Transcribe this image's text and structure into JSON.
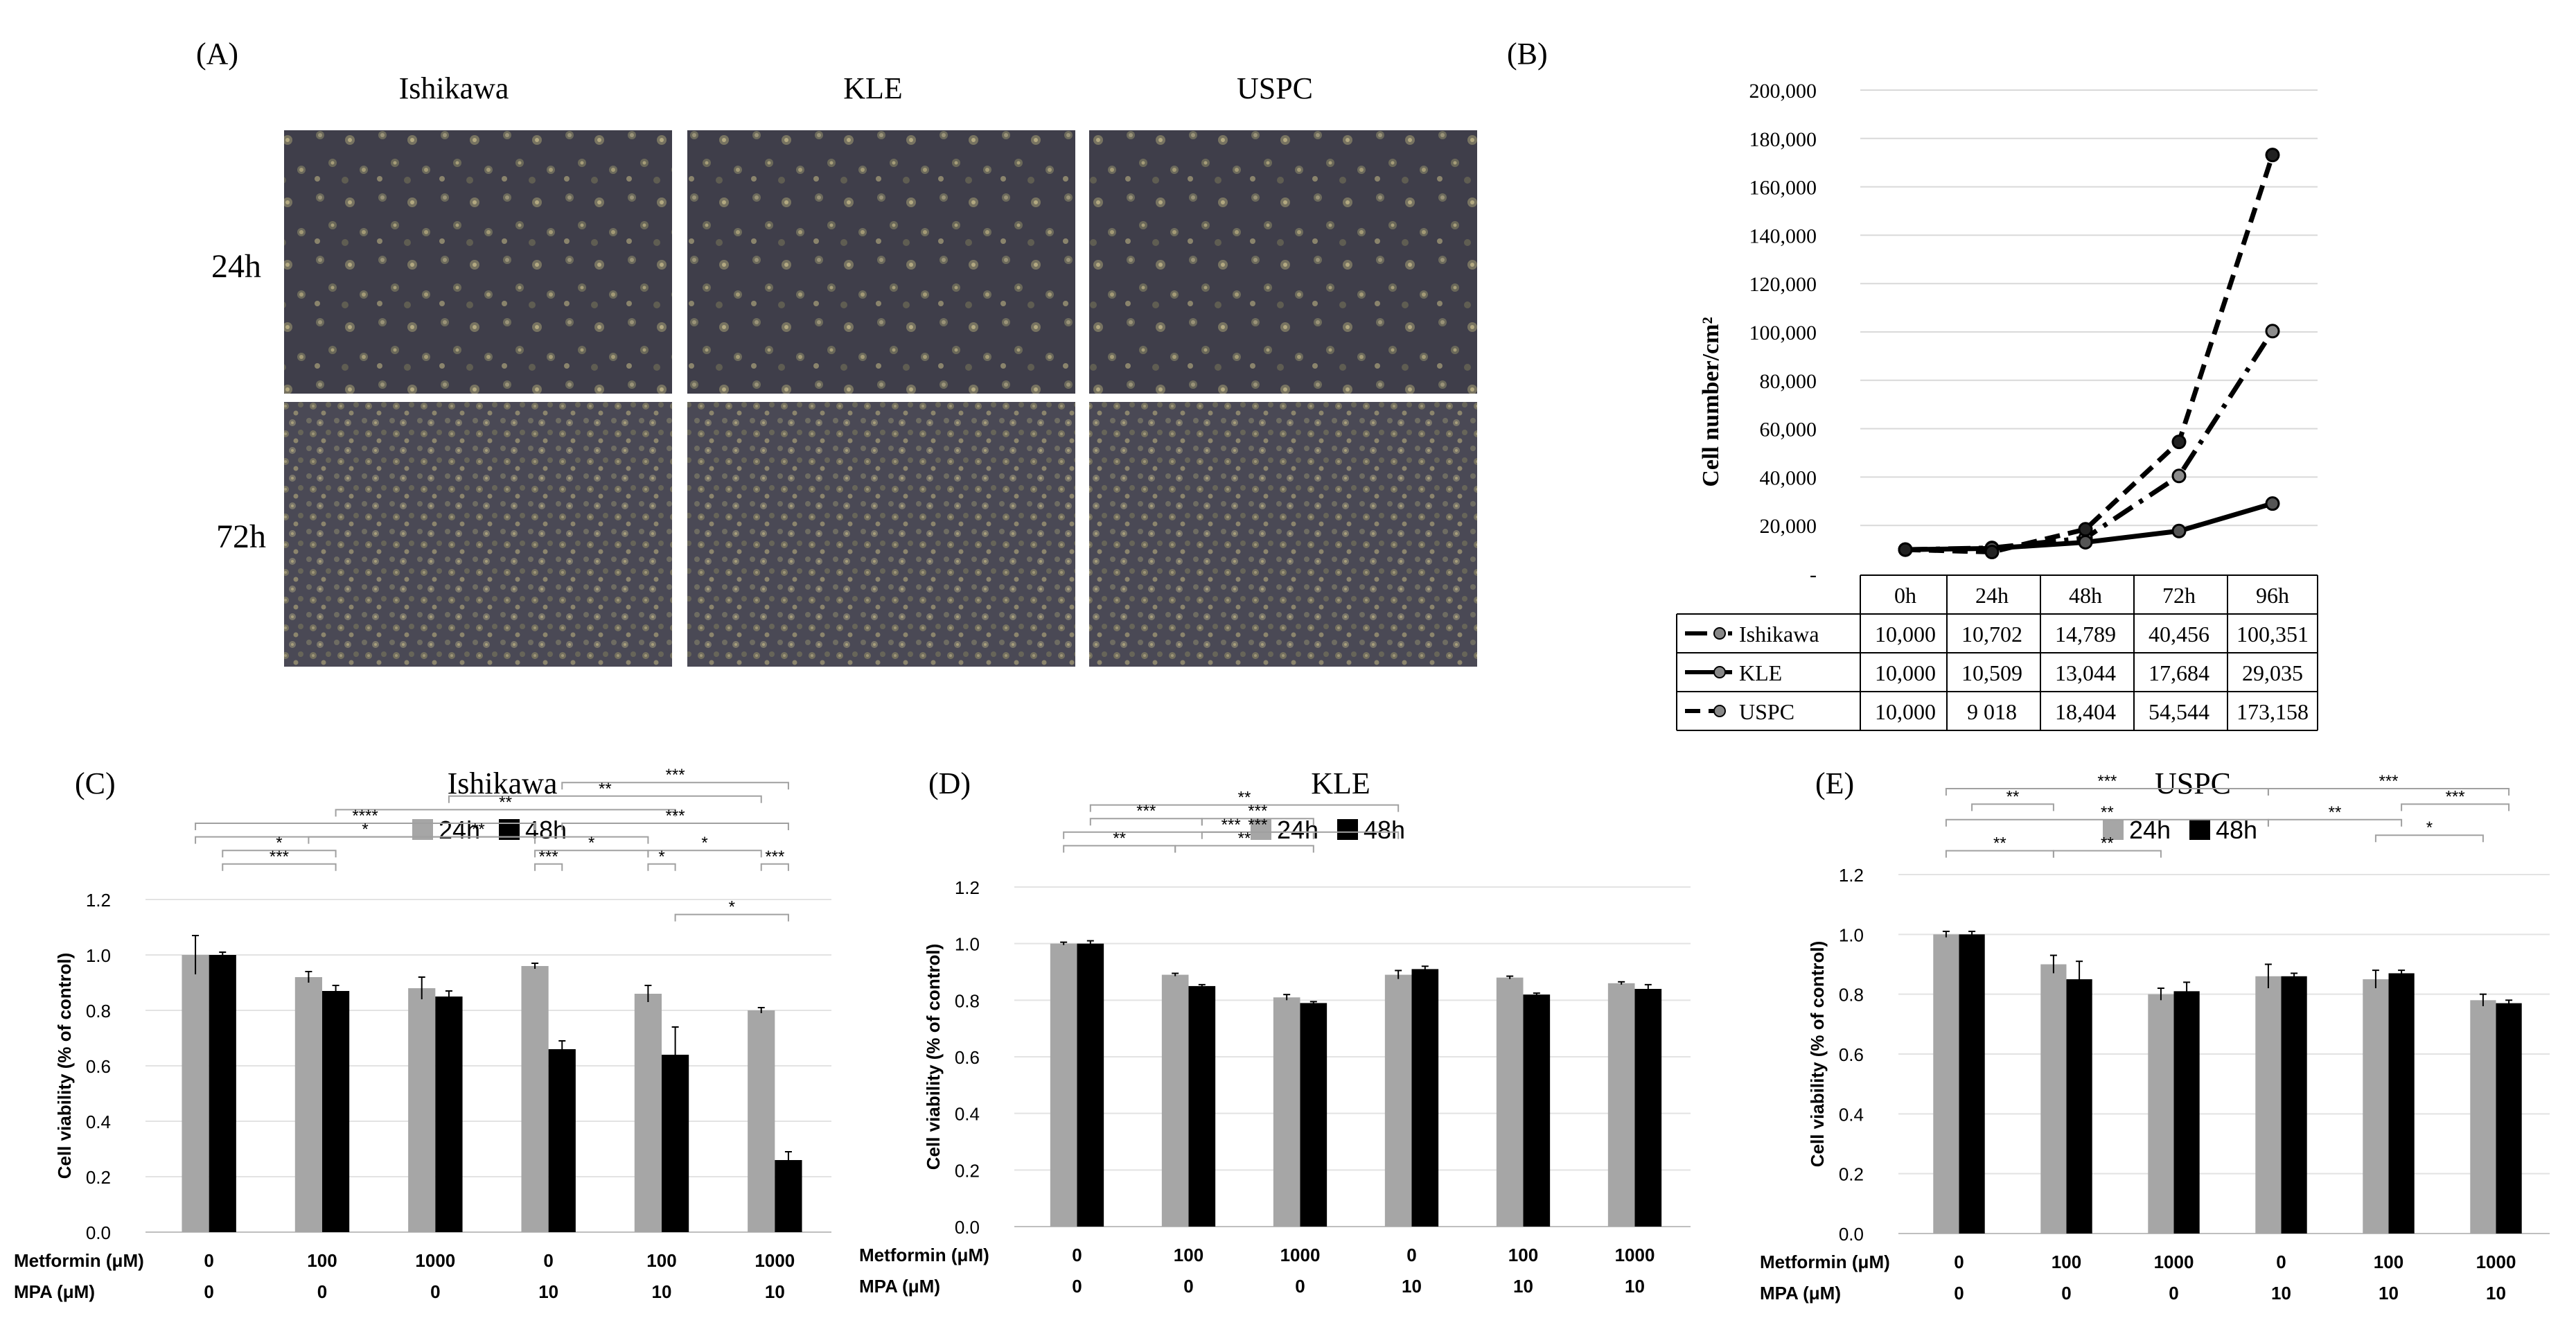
{
  "panelA": {
    "letter": "(A)",
    "cols": [
      "Ishikawa",
      "KLE",
      "USPC"
    ],
    "rows": [
      "24h",
      "72h"
    ]
  },
  "panelB": {
    "letter": "(B)",
    "chart_data": {
      "type": "line",
      "ylabel": "Cell number/cm²",
      "ylim": [
        0,
        200000
      ],
      "yticks": [
        "200,000",
        "180,000",
        "160,000",
        "140,000",
        "120,000",
        "100,000",
        "80,000",
        "60,000",
        "40,000",
        "20,000",
        "-"
      ],
      "categories": [
        "0h",
        "24h",
        "48h",
        "72h",
        "96h"
      ],
      "series": [
        {
          "name": "Ishikawa",
          "values": [
            10000,
            10702,
            14789,
            40456,
            100351
          ],
          "labels": [
            "10,000",
            "10,702",
            "14,789",
            "40,456",
            "100,351"
          ],
          "style": "dashdot"
        },
        {
          "name": "KLE",
          "values": [
            10000,
            10509,
            13044,
            17684,
            29035
          ],
          "labels": [
            "10,000",
            "10,509",
            "13,044",
            "17,684",
            "29,035"
          ],
          "style": "solid"
        },
        {
          "name": "USPC",
          "values": [
            10000,
            9018,
            18404,
            54544,
            173158
          ],
          "labels": [
            "10,000",
            "9 018",
            "18,404",
            "54,544",
            "173,158"
          ],
          "style": "dashed"
        }
      ],
      "grid": true,
      "legend": "table-below"
    }
  },
  "barCharts": [
    {
      "letter": "(C)",
      "chart_data": {
        "type": "bar",
        "title": "Ishikawa",
        "ylabel": "Cell viability (% of control)",
        "ylim": [
          0,
          1.2
        ],
        "yticks": [
          "0.0",
          "0.2",
          "0.4",
          "0.6",
          "0.8",
          "1.0",
          "1.2"
        ],
        "categories": [
          "1",
          "2",
          "3",
          "4",
          "5",
          "6"
        ],
        "row_labels": [
          "Metformin (μM)",
          "MPA (μM)"
        ],
        "metformin": [
          "0",
          "100",
          "1000",
          "0",
          "100",
          "1000"
        ],
        "mpa": [
          "0",
          "0",
          "0",
          "10",
          "10",
          "10"
        ],
        "series": [
          {
            "name": "24h",
            "color": "#a6a6a6",
            "values": [
              1.0,
              0.92,
              0.88,
              0.96,
              0.86,
              0.8
            ],
            "err": [
              0.07,
              0.02,
              0.04,
              0.01,
              0.03,
              0.01
            ]
          },
          {
            "name": "48h",
            "color": "#000000",
            "values": [
              1.0,
              0.87,
              0.85,
              0.66,
              0.64,
              0.26
            ],
            "err": [
              0.01,
              0.02,
              0.02,
              0.03,
              0.1,
              0.03
            ]
          }
        ],
        "legend": "top",
        "annotations": [
          {
            "text": "***",
            "from": [
              4,
              1
            ],
            "to": [
              6,
              1
            ],
            "level": 0.96
          },
          {
            "text": "**",
            "from": [
              3,
              1
            ],
            "to": [
              6,
              0
            ],
            "level": 0.89
          },
          {
            "text": "**",
            "from": [
              2,
              1
            ],
            "to": [
              5,
              1
            ],
            "level": 0.82
          },
          {
            "text": "****",
            "from": [
              1,
              0
            ],
            "to": [
              4,
              0
            ],
            "level": 0.75
          },
          {
            "text": "***",
            "from": [
              4,
              1
            ],
            "to": [
              6,
              1
            ],
            "level": 0.75
          },
          {
            "text": "*",
            "from": [
              1,
              0
            ],
            "to": [
              4,
              0
            ],
            "level": 0.68
          },
          {
            "text": "**",
            "from": [
              2,
              0
            ],
            "to": [
              5,
              0
            ],
            "level": 0.68
          },
          {
            "text": "*",
            "from": [
              1,
              1
            ],
            "to": [
              2,
              1
            ],
            "level": 0.61
          },
          {
            "text": "*",
            "from": [
              4,
              0
            ],
            "to": [
              5,
              0
            ],
            "level": 0.61
          },
          {
            "text": "*",
            "from": [
              5,
              0
            ],
            "to": [
              6,
              0
            ],
            "level": 0.61
          },
          {
            "text": "***",
            "from": [
              1,
              1
            ],
            "to": [
              2,
              1
            ],
            "level": 0.54
          },
          {
            "text": "***",
            "from": [
              4,
              0
            ],
            "to": [
              4,
              1
            ],
            "level": 0.54
          },
          {
            "text": "*",
            "from": [
              5,
              0
            ],
            "to": [
              5,
              1
            ],
            "level": 0.54
          },
          {
            "text": "***",
            "from": [
              6,
              0
            ],
            "to": [
              6,
              1
            ],
            "level": 0.54
          },
          {
            "text": "*",
            "from": [
              5,
              1
            ],
            "to": [
              6,
              1
            ],
            "level": 0.28
          }
        ]
      }
    },
    {
      "letter": "(D)",
      "chart_data": {
        "type": "bar",
        "title": "KLE",
        "ylabel": "Cell viability (% of control)",
        "ylim": [
          0,
          1.2
        ],
        "yticks": [
          "0.0",
          "0.2",
          "0.4",
          "0.6",
          "0.8",
          "1.0",
          "1.2"
        ],
        "categories": [
          "1",
          "2",
          "3",
          "4",
          "5",
          "6"
        ],
        "row_labels": [
          "Metformin (μM)",
          "MPA (μM)"
        ],
        "metformin": [
          "0",
          "100",
          "1000",
          "0",
          "100",
          "1000"
        ],
        "mpa": [
          "0",
          "0",
          "0",
          "10",
          "10",
          "10"
        ],
        "series": [
          {
            "name": "24h",
            "color": "#a6a6a6",
            "values": [
              1.0,
              0.89,
              0.81,
              0.89,
              0.88,
              0.86
            ],
            "err": [
              0.005,
              0.005,
              0.01,
              0.015,
              0.005,
              0.005
            ]
          },
          {
            "name": "48h",
            "color": "#000000",
            "values": [
              1.0,
              0.85,
              0.79,
              0.91,
              0.82,
              0.84
            ],
            "err": [
              0.01,
              0.005,
              0.005,
              0.01,
              0.005,
              0.015
            ]
          }
        ],
        "legend": "top",
        "annotations": [
          {
            "text": "**",
            "from": [
              1,
              1
            ],
            "to": [
              4,
              0
            ],
            "level": 0.78
          },
          {
            "text": "***",
            "from": [
              1,
              1
            ],
            "to": [
              2,
              1
            ],
            "level": 0.71
          },
          {
            "text": "***",
            "from": [
              2,
              1
            ],
            "to": [
              3,
              1
            ],
            "level": 0.71
          },
          {
            "text": "***",
            "from": [
              1,
              0
            ],
            "to": [
              4,
              0
            ],
            "level": 0.64
          },
          {
            "text": "***",
            "from": [
              2,
              1
            ],
            "to": [
              3,
              1
            ],
            "level": 0.64
          },
          {
            "text": "**",
            "from": [
              1,
              0
            ],
            "to": [
              2,
              0
            ],
            "level": 0.57
          },
          {
            "text": "**",
            "from": [
              2,
              0
            ],
            "to": [
              3,
              1
            ],
            "level": 0.57
          }
        ]
      }
    },
    {
      "letter": "(E)",
      "chart_data": {
        "type": "bar",
        "title": "USPC",
        "ylabel": "Cell viability (% of control)",
        "ylim": [
          0,
          1.2
        ],
        "yticks": [
          "0.0",
          "0.2",
          "0.4",
          "0.6",
          "0.8",
          "1.0",
          "1.2"
        ],
        "categories": [
          "1",
          "2",
          "3",
          "4",
          "5",
          "6"
        ],
        "row_labels": [
          "Metformin (μM)",
          "MPA (μM)"
        ],
        "metformin": [
          "0",
          "100",
          "1000",
          "0",
          "100",
          "1000"
        ],
        "mpa": [
          "0",
          "0",
          "0",
          "10",
          "10",
          "10"
        ],
        "series": [
          {
            "name": "24h",
            "color": "#a6a6a6",
            "values": [
              1.0,
              0.9,
              0.8,
              0.86,
              0.85,
              0.78
            ],
            "err": [
              0.01,
              0.03,
              0.02,
              0.04,
              0.03,
              0.02
            ]
          },
          {
            "name": "48h",
            "color": "#000000",
            "values": [
              1.0,
              0.85,
              0.81,
              0.86,
              0.87,
              0.77
            ],
            "err": [
              0.01,
              0.06,
              0.03,
              0.01,
              0.01,
              0.01
            ]
          }
        ],
        "legend": "top",
        "annotations": [
          {
            "text": "***",
            "from": [
              1,
              0
            ],
            "to": [
              4,
              0
            ],
            "level": 0.8
          },
          {
            "text": "***",
            "from": [
              4,
              0
            ],
            "to": [
              6,
              1
            ],
            "level": 0.8
          },
          {
            "text": "**",
            "from": [
              1,
              1
            ],
            "to": [
              2,
              0
            ],
            "level": 0.72
          },
          {
            "text": "***",
            "from": [
              5,
              1
            ],
            "to": [
              6,
              1
            ],
            "level": 0.72
          },
          {
            "text": "**",
            "from": [
              1,
              0
            ],
            "to": [
              4,
              0
            ],
            "level": 0.64
          },
          {
            "text": "**",
            "from": [
              4,
              0
            ],
            "to": [
              5,
              1
            ],
            "level": 0.64
          },
          {
            "text": "*",
            "from": [
              5,
              0
            ],
            "to": [
              6,
              0
            ],
            "level": 0.56
          },
          {
            "text": "**",
            "from": [
              1,
              0
            ],
            "to": [
              2,
              0
            ],
            "level": 0.48
          },
          {
            "text": "**",
            "from": [
              2,
              0
            ],
            "to": [
              3,
              0
            ],
            "level": 0.48
          }
        ]
      }
    }
  ]
}
